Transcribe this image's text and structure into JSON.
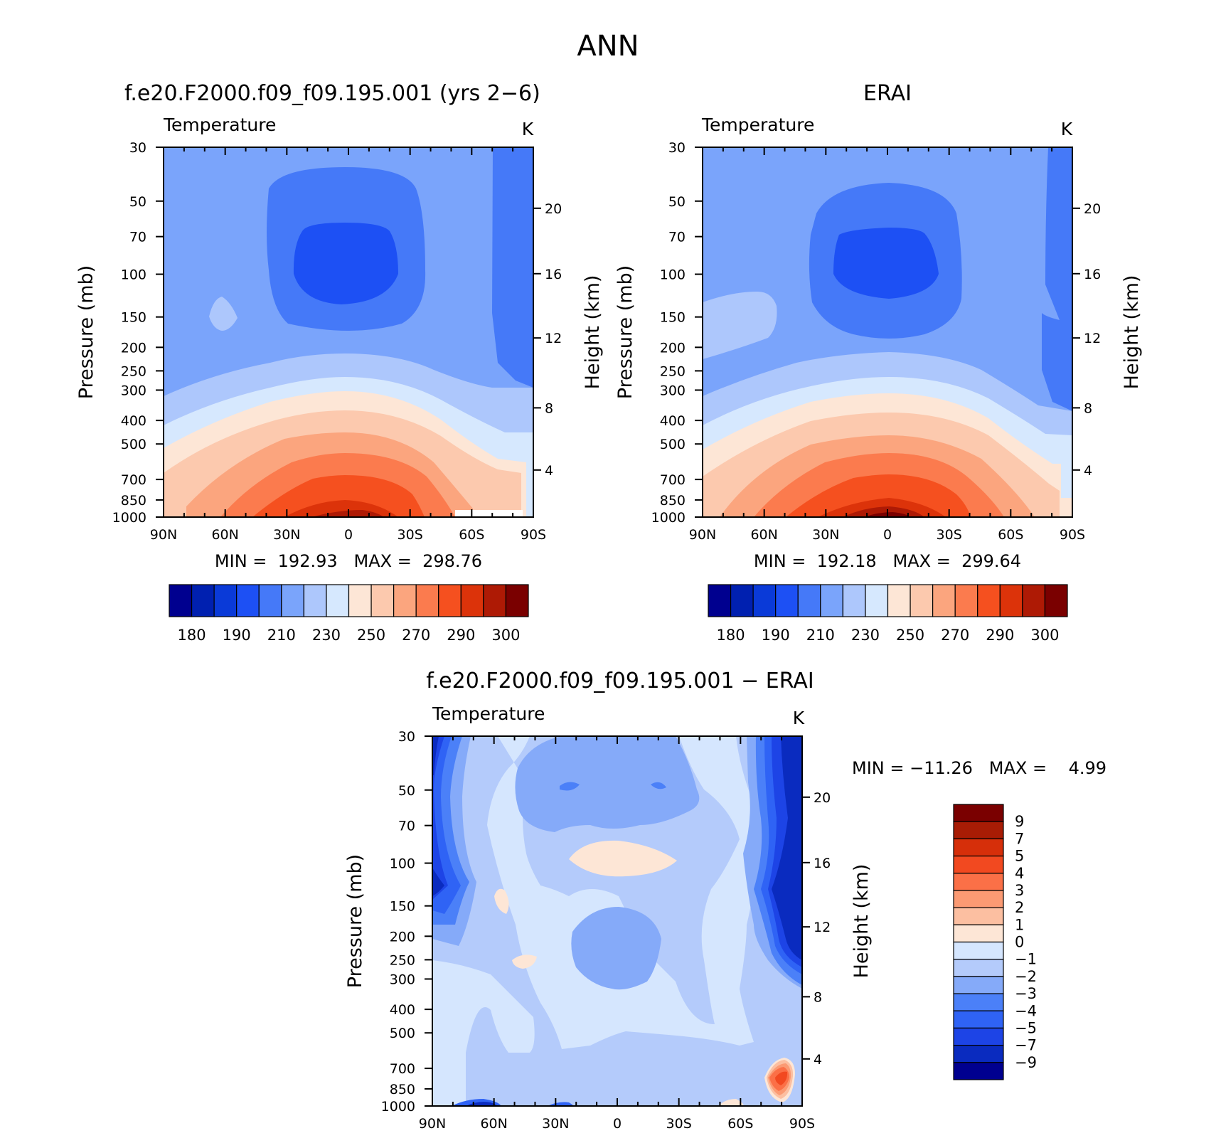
{
  "figure_title": "ANN",
  "colors": {
    "abs_scale": [
      "#00008f",
      "#0020b0",
      "#0a3ad8",
      "#1d50f4",
      "#4579f8",
      "#7aa4fb",
      "#adc7fc",
      "#d6e8fe",
      "#fde6d6",
      "#fcc9ae",
      "#fba57e",
      "#fb7b4e",
      "#f5501f",
      "#dc330a",
      "#ae1a05",
      "#7a0000"
    ],
    "diff_scale": [
      "#00008f",
      "#0a2bbf",
      "#1d44e6",
      "#2f63f5",
      "#4b80f8",
      "#85aaf9",
      "#b4cbfb",
      "#d5e6fe",
      "#fde6d6",
      "#fcbfa1",
      "#fb9a73",
      "#fb7047",
      "#f24920",
      "#d62f0a",
      "#a81c05",
      "#7a0000"
    ]
  },
  "panels": [
    {
      "title": "f.e20.F2000.f09_f09.195.001 (yrs 2−6)",
      "variable": "Temperature",
      "units": "K",
      "ylabel": "Pressure (mb)",
      "ylabel_right": "Height (km)",
      "min_max": "MIN =  192.93   MAX =  298.76",
      "colorbar_labels": [
        "180",
        "190",
        "210",
        "230",
        "250",
        "270",
        "290",
        "300"
      ]
    },
    {
      "title": "ERAI",
      "variable": "Temperature",
      "units": "K",
      "ylabel": "Pressure (mb)",
      "ylabel_right": "Height (km)",
      "min_max": "MIN =  192.18   MAX =  299.64",
      "colorbar_labels": [
        "180",
        "190",
        "210",
        "230",
        "250",
        "270",
        "290",
        "300"
      ]
    },
    {
      "title": "f.e20.F2000.f09_f09.195.001 − ERAI",
      "variable": "Temperature",
      "units": "K",
      "ylabel": "Pressure (mb)",
      "ylabel_right": "Height (km)",
      "min_max": "MIN = −11.26   MAX =    4.99",
      "colorbar_labels": [
        "9",
        "7",
        "5",
        "4",
        "3",
        "2",
        "1",
        "0",
        "−1",
        "−2",
        "−3",
        "−4",
        "−5",
        "−7",
        "−9"
      ]
    }
  ],
  "axes": {
    "x_tick_labels": [
      "90N",
      "60N",
      "30N",
      "0",
      "30S",
      "60S",
      "90S"
    ],
    "y_tick_labels": [
      "30",
      "50",
      "70",
      "100",
      "150",
      "200",
      "250",
      "300",
      "400",
      "500",
      "700",
      "850",
      "1000"
    ],
    "y2_tick_labels": [
      "20",
      "16",
      "12",
      "8",
      "4"
    ]
  },
  "chart_data": [
    {
      "type": "heatmap",
      "title": "f.e20.F2000.f09_f09.195.001 (yrs 2−6)",
      "subtitle": "Temperature",
      "units": "K",
      "ylabel": "Pressure (mb)",
      "ylabel_right": "Height (km)",
      "x": [
        "90N",
        "60N",
        "30N",
        "0",
        "30S",
        "60S",
        "90S"
      ],
      "y": [
        30,
        50,
        70,
        100,
        150,
        200,
        250,
        300,
        400,
        500,
        700,
        850,
        1000
      ],
      "y_scale": "log",
      "ylim": [
        1000,
        30
      ],
      "min": 192.93,
      "max": 298.76,
      "contour_levels": [
        180,
        185,
        190,
        200,
        210,
        220,
        230,
        240,
        250,
        260,
        270,
        280,
        290,
        295,
        300
      ],
      "levels_approx": [
        [
          215,
          215,
          215,
          215,
          215,
          215,
          215,
          215,
          205
        ],
        [
          215,
          215,
          210,
          200,
          195,
          200,
          210,
          215,
          205
        ],
        [
          215,
          215,
          210,
          200,
          195,
          200,
          210,
          215,
          205
        ],
        [
          215,
          220,
          210,
          200,
          195,
          200,
          210,
          215,
          205
        ],
        [
          215,
          225,
          210,
          205,
          205,
          205,
          210,
          215,
          205
        ],
        [
          215,
          215,
          215,
          215,
          215,
          215,
          215,
          215,
          205
        ],
        [
          215,
          215,
          225,
          225,
          225,
          225,
          225,
          215,
          205
        ],
        [
          215,
          225,
          235,
          235,
          235,
          235,
          225,
          215,
          215
        ],
        [
          225,
          235,
          245,
          255,
          255,
          245,
          235,
          225,
          215
        ],
        [
          235,
          245,
          255,
          265,
          265,
          255,
          245,
          235,
          235
        ],
        [
          245,
          255,
          265,
          275,
          275,
          265,
          255,
          245,
          245
        ],
        [
          245,
          265,
          275,
          285,
          285,
          275,
          265,
          255,
          245
        ],
        [
          255,
          270,
          285,
          295,
          295,
          285,
          270,
          255,
          245
        ]
      ]
    },
    {
      "type": "heatmap",
      "title": "ERAI",
      "subtitle": "Temperature",
      "units": "K",
      "ylabel": "Pressure (mb)",
      "ylabel_right": "Height (km)",
      "x": [
        "90N",
        "60N",
        "30N",
        "0",
        "30S",
        "60S",
        "90S"
      ],
      "y": [
        30,
        50,
        70,
        100,
        150,
        200,
        250,
        300,
        400,
        500,
        700,
        850,
        1000
      ],
      "y_scale": "log",
      "ylim": [
        1000,
        30
      ],
      "min": 192.18,
      "max": 299.64,
      "contour_levels": [
        180,
        185,
        190,
        200,
        210,
        220,
        230,
        240,
        250,
        260,
        270,
        280,
        290,
        295,
        300
      ],
      "levels_approx": [
        [
          215,
          215,
          215,
          215,
          215,
          215,
          215,
          215,
          205
        ],
        [
          215,
          215,
          210,
          200,
          195,
          200,
          210,
          215,
          205
        ],
        [
          215,
          215,
          210,
          200,
          195,
          200,
          210,
          215,
          205
        ],
        [
          220,
          225,
          210,
          200,
          195,
          200,
          210,
          215,
          205
        ],
        [
          225,
          225,
          210,
          205,
          205,
          205,
          210,
          215,
          205
        ],
        [
          215,
          215,
          215,
          215,
          215,
          215,
          215,
          215,
          205
        ],
        [
          215,
          215,
          225,
          225,
          225,
          225,
          225,
          215,
          205
        ],
        [
          215,
          225,
          235,
          235,
          235,
          235,
          225,
          215,
          215
        ],
        [
          225,
          235,
          245,
          255,
          255,
          245,
          235,
          225,
          215
        ],
        [
          235,
          245,
          255,
          265,
          265,
          255,
          245,
          235,
          235
        ],
        [
          245,
          255,
          265,
          275,
          275,
          265,
          255,
          245,
          245
        ],
        [
          245,
          265,
          275,
          285,
          285,
          275,
          265,
          255,
          245
        ],
        [
          255,
          270,
          285,
          295,
          298,
          285,
          270,
          255,
          245
        ]
      ]
    },
    {
      "type": "heatmap",
      "title": "f.e20.F2000.f09_f09.195.001 − ERAI",
      "subtitle": "Temperature",
      "units": "K",
      "ylabel": "Pressure (mb)",
      "ylabel_right": "Height (km)",
      "x": [
        "90N",
        "60N",
        "30N",
        "0",
        "30S",
        "60S",
        "90S"
      ],
      "y": [
        30,
        50,
        70,
        100,
        150,
        200,
        250,
        300,
        400,
        500,
        700,
        850,
        1000
      ],
      "y_scale": "log",
      "ylim": [
        1000,
        30
      ],
      "min": -11.26,
      "max": 4.99,
      "contour_levels": [
        -9,
        -7,
        -5,
        -4,
        -3,
        -2,
        -1,
        0,
        1,
        2,
        3,
        4,
        5,
        7,
        9
      ],
      "levels_approx": [
        [
          -5,
          -3,
          -1.5,
          -1.5,
          -2.5,
          -1.5,
          -0.5,
          -3,
          -5
        ],
        [
          -4,
          -2,
          -1.5,
          -2.5,
          -3.5,
          -2.5,
          -0.5,
          -2,
          -4
        ],
        [
          -4,
          -2,
          -1.5,
          -2,
          -1.5,
          -1.5,
          -0.5,
          -2,
          -4
        ],
        [
          -4,
          -2,
          -0.5,
          -0.5,
          0.5,
          -0.5,
          -0.5,
          -2,
          -4
        ],
        [
          -4,
          -2,
          -0.5,
          -1.5,
          -1.5,
          -1.5,
          -0.5,
          -2,
          -5
        ],
        [
          -5,
          -2,
          -0.5,
          -1.5,
          -2.5,
          -1.5,
          -1.5,
          -3,
          -6
        ],
        [
          -4,
          -1.5,
          -0.5,
          -1.5,
          -2.5,
          -1.5,
          -0.5,
          -2,
          -4
        ],
        [
          -0.5,
          -0.5,
          -0.5,
          -1.5,
          -1.5,
          -1.5,
          -0.5,
          -0.5,
          -1.5
        ],
        [
          -0.5,
          -0.5,
          -0.5,
          -1.5,
          -1.5,
          -1.5,
          -0.5,
          -0.5,
          -1.5
        ],
        [
          -0.5,
          -0.5,
          -0.5,
          -1.5,
          -0.5,
          -1.5,
          -0.5,
          -0.5,
          -1.5
        ],
        [
          -0.5,
          -1.5,
          -0.5,
          -1.5,
          -1.5,
          -1.5,
          -1.5,
          -0.5,
          3.5
        ],
        [
          -0.5,
          -1.5,
          -0.5,
          -1.5,
          -1.5,
          -1.5,
          -1.5,
          -1.5,
          3
        ],
        [
          -1.5,
          -5,
          -1.5,
          -1.5,
          -1.5,
          -1.5,
          -1.5,
          0.5,
          -1.5
        ]
      ]
    }
  ]
}
